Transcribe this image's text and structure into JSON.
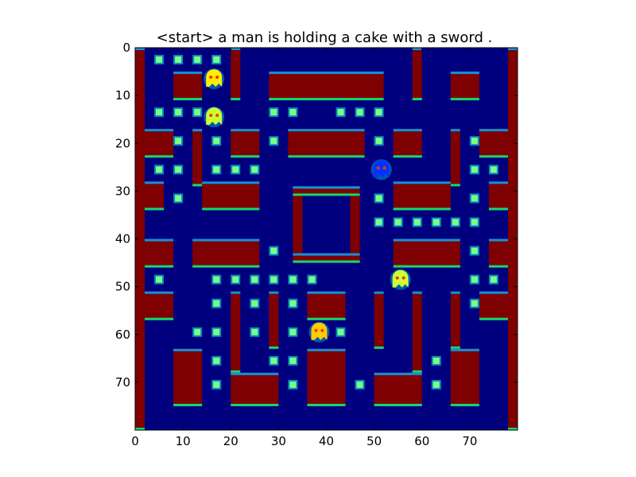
{
  "title": "<start> a man is holding a cake with a sword .",
  "axes": {
    "x": {
      "range": [
        0,
        80
      ],
      "ticks": [
        "0",
        "10",
        "20",
        "30",
        "40",
        "50",
        "60",
        "70"
      ]
    },
    "y": {
      "range": [
        0,
        80
      ],
      "ticks": [
        "0",
        "10",
        "20",
        "30",
        "40",
        "50",
        "60",
        "70"
      ],
      "inverted": true
    }
  },
  "colors": {
    "background": "#00007f",
    "wall_fill": "#7f0000",
    "wall_edge_top": "#00ff7f",
    "wall_edge_bottom": "#00aaff",
    "pellet": "#7fff7f",
    "pellet_glow": "#00ffff",
    "ghost_green": "#ccff33",
    "ghost_yellow": "#ffee00",
    "ghost_blue": "#0033ff",
    "player": "#ffcc00"
  },
  "maze": {
    "walls": [
      {
        "x": 0,
        "y": 0,
        "w": 2,
        "h": 80
      },
      {
        "x": 78,
        "y": 0,
        "w": 2,
        "h": 80
      },
      {
        "x": 20,
        "y": 0,
        "w": 2,
        "h": 11
      },
      {
        "x": 58,
        "y": 0,
        "w": 2,
        "h": 11
      },
      {
        "x": 8,
        "y": 5,
        "w": 6,
        "h": 6
      },
      {
        "x": 28,
        "y": 5,
        "w": 24,
        "h": 6
      },
      {
        "x": 66,
        "y": 5,
        "w": 6,
        "h": 6
      },
      {
        "x": 2,
        "y": 17,
        "w": 6,
        "h": 6
      },
      {
        "x": 20,
        "y": 17,
        "w": 6,
        "h": 6
      },
      {
        "x": 32,
        "y": 17,
        "w": 16,
        "h": 6
      },
      {
        "x": 54,
        "y": 17,
        "w": 6,
        "h": 6
      },
      {
        "x": 66,
        "y": 17,
        "w": 2,
        "h": 12
      },
      {
        "x": 72,
        "y": 17,
        "w": 6,
        "h": 6
      },
      {
        "x": 12,
        "y": 17,
        "w": 2,
        "h": 12
      },
      {
        "x": 2,
        "y": 28,
        "w": 4,
        "h": 6
      },
      {
        "x": 14,
        "y": 28,
        "w": 12,
        "h": 6
      },
      {
        "x": 54,
        "y": 28,
        "w": 12,
        "h": 6
      },
      {
        "x": 74,
        "y": 28,
        "w": 4,
        "h": 6
      },
      {
        "x": 33,
        "y": 29,
        "w": 2,
        "h": 16
      },
      {
        "x": 45,
        "y": 29,
        "w": 2,
        "h": 16
      },
      {
        "x": 33,
        "y": 29,
        "w": 14,
        "h": 2
      },
      {
        "x": 33,
        "y": 43,
        "w": 14,
        "h": 2
      },
      {
        "x": 2,
        "y": 40,
        "w": 6,
        "h": 6
      },
      {
        "x": 12,
        "y": 40,
        "w": 14,
        "h": 6
      },
      {
        "x": 54,
        "y": 40,
        "w": 14,
        "h": 6
      },
      {
        "x": 74,
        "y": 40,
        "w": 4,
        "h": 6
      },
      {
        "x": 2,
        "y": 51,
        "w": 6,
        "h": 6
      },
      {
        "x": 72,
        "y": 51,
        "w": 6,
        "h": 6
      },
      {
        "x": 20,
        "y": 51,
        "w": 2,
        "h": 17
      },
      {
        "x": 28,
        "y": 51,
        "w": 2,
        "h": 12
      },
      {
        "x": 50,
        "y": 51,
        "w": 2,
        "h": 12
      },
      {
        "x": 58,
        "y": 51,
        "w": 2,
        "h": 17
      },
      {
        "x": 36,
        "y": 51,
        "w": 8,
        "h": 6
      },
      {
        "x": 66,
        "y": 51,
        "w": 2,
        "h": 12
      },
      {
        "x": 8,
        "y": 63,
        "w": 6,
        "h": 12
      },
      {
        "x": 20,
        "y": 68,
        "w": 10,
        "h": 7
      },
      {
        "x": 36,
        "y": 63,
        "w": 8,
        "h": 12
      },
      {
        "x": 50,
        "y": 68,
        "w": 10,
        "h": 7
      },
      {
        "x": 66,
        "y": 63,
        "w": 6,
        "h": 12
      }
    ],
    "pellets": [
      [
        5,
        2.5
      ],
      [
        9,
        2.5
      ],
      [
        13,
        2.5
      ],
      [
        17,
        2.5
      ],
      [
        5,
        13.5
      ],
      [
        9,
        13.5
      ],
      [
        13,
        13.5
      ],
      [
        29,
        13.5
      ],
      [
        33,
        13.5
      ],
      [
        43,
        13.5
      ],
      [
        47,
        13.5
      ],
      [
        51,
        13.5
      ],
      [
        9,
        19.5
      ],
      [
        17,
        19.5
      ],
      [
        29,
        19.5
      ],
      [
        51,
        19.5
      ],
      [
        71,
        19.5
      ],
      [
        5,
        25.5
      ],
      [
        9,
        25.5
      ],
      [
        17,
        25.5
      ],
      [
        21,
        25.5
      ],
      [
        25,
        25.5
      ],
      [
        71,
        25.5
      ],
      [
        75,
        25.5
      ],
      [
        9,
        31.5
      ],
      [
        51,
        31.5
      ],
      [
        71,
        31.5
      ],
      [
        51,
        36.5
      ],
      [
        55,
        36.5
      ],
      [
        59,
        36.5
      ],
      [
        63,
        36.5
      ],
      [
        67,
        36.5
      ],
      [
        71,
        36.5
      ],
      [
        29,
        42.5
      ],
      [
        71,
        42.5
      ],
      [
        5,
        48.5
      ],
      [
        17,
        48.5
      ],
      [
        21,
        48.5
      ],
      [
        25,
        48.5
      ],
      [
        29,
        48.5
      ],
      [
        33,
        48.5
      ],
      [
        37,
        48.5
      ],
      [
        71,
        48.5
      ],
      [
        75,
        48.5
      ],
      [
        17,
        53.5
      ],
      [
        25,
        53.5
      ],
      [
        33,
        53.5
      ],
      [
        71,
        53.5
      ],
      [
        13,
        59.5
      ],
      [
        17,
        59.5
      ],
      [
        25,
        59.5
      ],
      [
        33,
        59.5
      ],
      [
        43,
        59.5
      ],
      [
        17,
        65.5
      ],
      [
        29,
        65.5
      ],
      [
        33,
        65.5
      ],
      [
        63,
        65.5
      ],
      [
        17,
        70.5
      ],
      [
        33,
        70.5
      ],
      [
        47,
        70.5
      ],
      [
        63,
        70.5
      ]
    ],
    "ghosts": [
      {
        "name": "ghost-top",
        "x": 16.5,
        "y": 6.5,
        "color_key": "ghost_yellow"
      },
      {
        "name": "ghost-green",
        "x": 16.5,
        "y": 14.5,
        "color_key": "ghost_green"
      },
      {
        "name": "ghost-blue",
        "x": 51.5,
        "y": 25.5,
        "color_key": "ghost_blue"
      },
      {
        "name": "ghost-right",
        "x": 55.5,
        "y": 48.5,
        "color_key": "ghost_green"
      },
      {
        "name": "player",
        "x": 38.5,
        "y": 59.5,
        "color_key": "player"
      }
    ]
  }
}
